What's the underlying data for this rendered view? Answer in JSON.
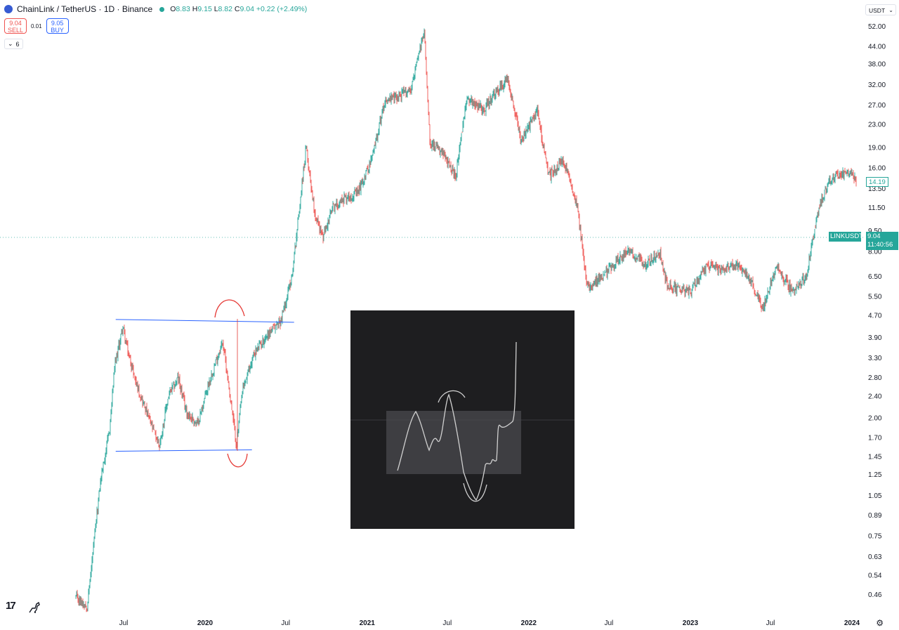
{
  "header": {
    "title": "ChainLink / TetherUS · 1D · Binance",
    "ohlc": {
      "o_label": "O",
      "o": "8.83",
      "h_label": "H",
      "h": "9.15",
      "l_label": "L",
      "l": "8.82",
      "c_label": "C",
      "c": "9.04",
      "change": "+0.22 (+2.49%)"
    }
  },
  "trade": {
    "sell_price": "9.04",
    "sell_label": "SELL",
    "spread": "0.01",
    "buy_price": "9.05",
    "buy_label": "BUY"
  },
  "indicators_count": "6",
  "currency": "USDT",
  "price_labels": {
    "symbol": "LINKUSDT",
    "last": "9.04",
    "countdown": "11:40:56",
    "marker": "14.19"
  },
  "colors": {
    "up": "#26a69a",
    "down": "#ef5350",
    "trendline": "#2962ff",
    "annotation": "#e53935",
    "inset_bg": "#1e1e20"
  },
  "chart_data": {
    "type": "line",
    "symbol": "LINKUSDT",
    "interval": "1D",
    "scale": "log",
    "ylim": [
      0.4,
      58
    ],
    "y_ticks": [
      "52.00",
      "44.00",
      "38.00",
      "32.00",
      "27.00",
      "23.00",
      "19.00",
      "16.00",
      "13.50",
      "11.50",
      "9.50",
      "8.00",
      "6.50",
      "5.50",
      "4.70",
      "3.90",
      "3.30",
      "2.80",
      "2.40",
      "2.00",
      "1.70",
      "1.45",
      "1.25",
      "1.05",
      "0.89",
      "0.75",
      "0.63",
      "0.54",
      "0.46"
    ],
    "x_ticks": [
      {
        "label": "Jul",
        "date": "2019-07-01"
      },
      {
        "label": "2020",
        "date": "2020-01-01"
      },
      {
        "label": "Jul",
        "date": "2020-07-01"
      },
      {
        "label": "2021",
        "date": "2021-01-01"
      },
      {
        "label": "Jul",
        "date": "2021-07-01"
      },
      {
        "label": "2022",
        "date": "2022-01-01"
      },
      {
        "label": "Jul",
        "date": "2022-07-01"
      },
      {
        "label": "2023",
        "date": "2023-01-01"
      },
      {
        "label": "Jul",
        "date": "2023-07-01"
      },
      {
        "label": "2024",
        "date": "2024-01-01"
      }
    ],
    "grid": false,
    "series": [
      {
        "x": [
          "2019-03-15",
          "2019-04-10",
          "2019-05-10",
          "2019-05-30",
          "2019-06-10",
          "2019-06-29",
          "2019-07-10",
          "2019-08-01",
          "2019-09-01",
          "2019-09-20",
          "2019-10-10",
          "2019-11-01",
          "2019-11-20",
          "2019-12-15",
          "2020-01-10",
          "2020-02-10",
          "2020-03-12",
          "2020-03-25",
          "2020-04-20",
          "2020-05-20",
          "2020-06-20",
          "2020-07-15",
          "2020-08-16",
          "2020-09-05",
          "2020-09-23",
          "2020-10-15",
          "2020-11-10",
          "2020-12-10",
          "2021-01-10",
          "2021-02-10",
          "2021-03-10",
          "2021-04-10",
          "2021-05-10",
          "2021-05-23",
          "2021-06-20",
          "2021-07-20",
          "2021-08-15",
          "2021-09-20",
          "2021-10-20",
          "2021-11-15",
          "2021-12-15",
          "2022-01-20",
          "2022-02-15",
          "2022-03-20",
          "2022-04-20",
          "2022-05-12",
          "2022-06-18",
          "2022-07-20",
          "2022-08-15",
          "2022-09-20",
          "2022-10-25",
          "2022-11-10",
          "2022-12-30",
          "2023-02-10",
          "2023-03-10",
          "2023-04-15",
          "2023-05-15",
          "2023-06-12",
          "2023-07-15",
          "2023-08-18",
          "2023-09-20",
          "2023-10-15",
          "2023-11-10",
          "2023-12-10",
          "2024-01-05",
          "2024-01-12"
        ],
        "y": [
          0.45,
          0.42,
          1.2,
          1.8,
          3.0,
          4.3,
          3.5,
          2.6,
          1.9,
          1.6,
          2.4,
          2.8,
          2.1,
          1.9,
          2.7,
          3.8,
          1.6,
          2.5,
          3.4,
          4.0,
          4.5,
          6.5,
          19.0,
          11.0,
          9.0,
          11.5,
          12.5,
          13.0,
          17.0,
          28.0,
          29.0,
          31.0,
          50.0,
          20.0,
          18.0,
          15.0,
          29.0,
          26.0,
          30.0,
          34.0,
          20.0,
          26.0,
          15.0,
          17.0,
          12.0,
          6.0,
          6.5,
          7.5,
          8.0,
          7.2,
          7.8,
          6.0,
          5.7,
          7.2,
          6.8,
          7.2,
          6.4,
          5.0,
          7.0,
          5.8,
          6.5,
          11.0,
          14.5,
          15.5,
          15.0,
          14.19
        ]
      }
    ],
    "annotations": {
      "range_upper": 4.55,
      "range_lower": 1.52,
      "range_start": "2019-06-29",
      "range_end": "2020-07-20"
    }
  }
}
